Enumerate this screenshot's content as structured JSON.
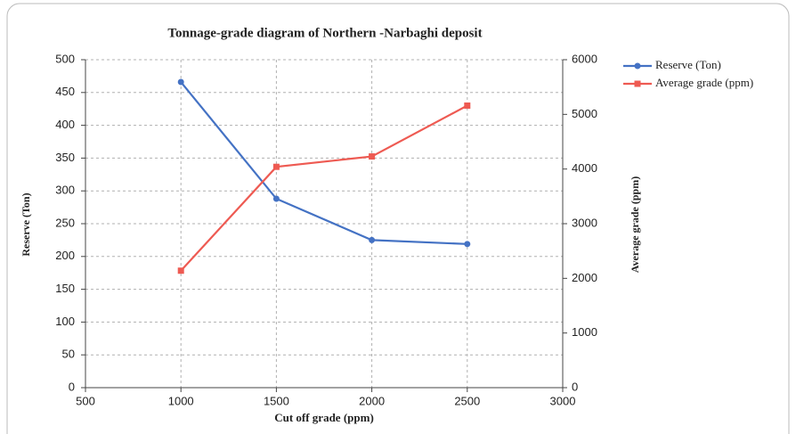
{
  "chart_data": {
    "type": "line",
    "title": "Tonnage-grade diagram of Northern -Narbaghi deposit",
    "xlabel": "Cut off grade (ppm)",
    "ylabel": "Reserve (Ton)",
    "y2label": "Average grade (ppm)",
    "x": [
      1000,
      1500,
      2000,
      2500
    ],
    "series": [
      {
        "name": "Reserve (Ton)",
        "color": "#4472c4",
        "values": [
          466,
          288,
          225,
          219
        ]
      },
      {
        "name": "Average grade (ppm)",
        "color": "#ee5a52",
        "axis": "y2",
        "values": [
          2140,
          4040,
          4230,
          5160
        ]
      }
    ],
    "xlim": [
      500,
      3000
    ],
    "xticks": [
      500,
      1000,
      1500,
      2000,
      2500,
      3000
    ],
    "ylim": [
      0,
      500
    ],
    "yticks": [
      0,
      50,
      100,
      150,
      200,
      250,
      300,
      350,
      400,
      450,
      500
    ],
    "y2lim": [
      0,
      6000
    ],
    "y2ticks": [
      0,
      1000,
      2000,
      3000,
      4000,
      5000,
      6000
    ],
    "grid": true,
    "legend": "upper right"
  }
}
